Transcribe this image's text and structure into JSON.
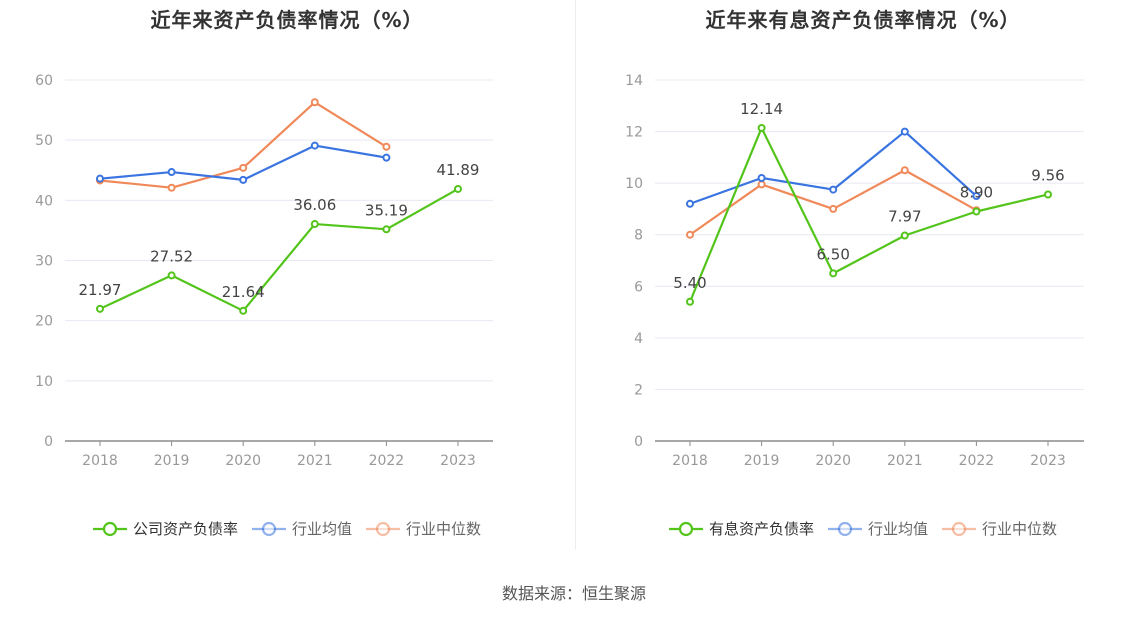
{
  "source": "数据来源：恒生聚源",
  "chart_data": [
    {
      "type": "line",
      "title": "近年来资产负债率情况（%）",
      "categories": [
        "2018",
        "2019",
        "2020",
        "2021",
        "2022",
        "2023"
      ],
      "ylim": [
        0,
        60
      ],
      "yticks": [
        0,
        10,
        20,
        30,
        40,
        50,
        60
      ],
      "grid": true,
      "legend_position": "bottom",
      "series": [
        {
          "name": "公司资产负债率",
          "color": "#52c41a",
          "values": [
            21.97,
            27.52,
            21.64,
            36.06,
            35.19,
            41.89
          ],
          "labels": [
            "21.97",
            "27.52",
            "21.64",
            "36.06",
            "35.19",
            "41.89"
          ]
        },
        {
          "name": "行业均值",
          "color": "#3a74e0",
          "values": [
            43.6,
            44.7,
            43.4,
            49.1,
            47.1,
            null
          ]
        },
        {
          "name": "行业中位数",
          "color": "#f0895a",
          "values": [
            43.3,
            42.1,
            45.4,
            56.3,
            48.9,
            null
          ]
        }
      ]
    },
    {
      "type": "line",
      "title": "近年来有息资产负债率情况（%）",
      "categories": [
        "2018",
        "2019",
        "2020",
        "2021",
        "2022",
        "2023"
      ],
      "ylim": [
        0,
        14
      ],
      "yticks": [
        0,
        2,
        4,
        6,
        8,
        10,
        12,
        14
      ],
      "grid": true,
      "legend_position": "bottom",
      "series": [
        {
          "name": "有息资产负债率",
          "color": "#52c41a",
          "values": [
            5.4,
            12.14,
            6.5,
            7.97,
            8.9,
            9.56
          ],
          "labels": [
            "5.40",
            "12.14",
            "6.50",
            "7.97",
            "8.90",
            "9.56"
          ]
        },
        {
          "name": "行业均值",
          "color": "#3a74e0",
          "values": [
            9.2,
            10.2,
            9.75,
            12.0,
            9.5,
            null
          ]
        },
        {
          "name": "行业中位数",
          "color": "#f0895a",
          "values": [
            8.0,
            9.95,
            9.0,
            10.5,
            8.95,
            null
          ]
        }
      ]
    }
  ]
}
